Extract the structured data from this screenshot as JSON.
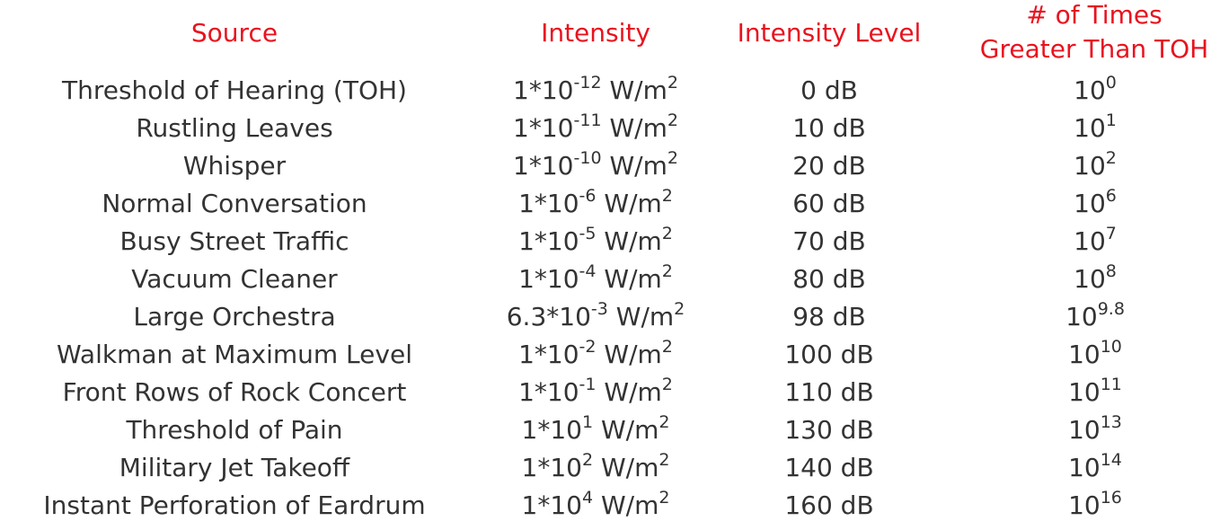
{
  "headers": {
    "source": "Source",
    "intensity": "Intensity",
    "level": "Intensity Level",
    "times_line1": "# of Times",
    "times_line2": "Greater Than TOH"
  },
  "colors": {
    "header": "#e8131f",
    "text": "#333333",
    "background": "#ffffff"
  },
  "rows": [
    {
      "source": "Threshold of Hearing (TOH)",
      "int_mant": "1*10",
      "int_exp": "-12",
      "int_unit": " W/m",
      "int_unit_exp": "2",
      "level": "0 dB",
      "times_base": "10",
      "times_exp": "0"
    },
    {
      "source": "Rustling Leaves",
      "int_mant": "1*10",
      "int_exp": "-11",
      "int_unit": " W/m",
      "int_unit_exp": "2",
      "level": "10 dB",
      "times_base": "10",
      "times_exp": "1"
    },
    {
      "source": "Whisper",
      "int_mant": "1*10",
      "int_exp": "-10",
      "int_unit": " W/m",
      "int_unit_exp": "2",
      "level": "20 dB",
      "times_base": "10",
      "times_exp": "2"
    },
    {
      "source": "Normal Conversation",
      "int_mant": "1*10",
      "int_exp": "-6",
      "int_unit": " W/m",
      "int_unit_exp": "2",
      "level": "60 dB",
      "times_base": "10",
      "times_exp": "6"
    },
    {
      "source": "Busy Street Traffic",
      "int_mant": "1*10",
      "int_exp": "-5",
      "int_unit": " W/m",
      "int_unit_exp": "2",
      "level": "70 dB",
      "times_base": "10",
      "times_exp": "7"
    },
    {
      "source": "Vacuum Cleaner",
      "int_mant": "1*10",
      "int_exp": "-4",
      "int_unit": " W/m",
      "int_unit_exp": "2",
      "level": "80 dB",
      "times_base": "10",
      "times_exp": "8"
    },
    {
      "source": "Large Orchestra",
      "int_mant": "6.3*10",
      "int_exp": "-3",
      "int_unit": " W/m",
      "int_unit_exp": "2",
      "level": "98 dB",
      "times_base": "10",
      "times_exp": "9.8"
    },
    {
      "source": "Walkman at Maximum Level",
      "int_mant": "1*10",
      "int_exp": "-2",
      "int_unit": " W/m",
      "int_unit_exp": "2",
      "level": "100 dB",
      "times_base": "10",
      "times_exp": "10"
    },
    {
      "source": "Front Rows of Rock Concert",
      "int_mant": "1*10",
      "int_exp": "-1",
      "int_unit": " W/m",
      "int_unit_exp": "2",
      "level": "110 dB",
      "times_base": "10",
      "times_exp": "11"
    },
    {
      "source": "Threshold of Pain",
      "int_mant": "1*10",
      "int_exp": "1",
      "int_unit": " W/m",
      "int_unit_exp": "2",
      "level": "130 dB",
      "times_base": "10",
      "times_exp": "13"
    },
    {
      "source": "Military Jet Takeoff",
      "int_mant": "1*10",
      "int_exp": "2",
      "int_unit": " W/m",
      "int_unit_exp": "2",
      "level": "140 dB",
      "times_base": "10",
      "times_exp": "14"
    },
    {
      "source": "Instant Perforation of Eardrum",
      "int_mant": "1*10",
      "int_exp": "4",
      "int_unit": " W/m",
      "int_unit_exp": "2",
      "level": "160 dB",
      "times_base": "10",
      "times_exp": "16"
    }
  ]
}
